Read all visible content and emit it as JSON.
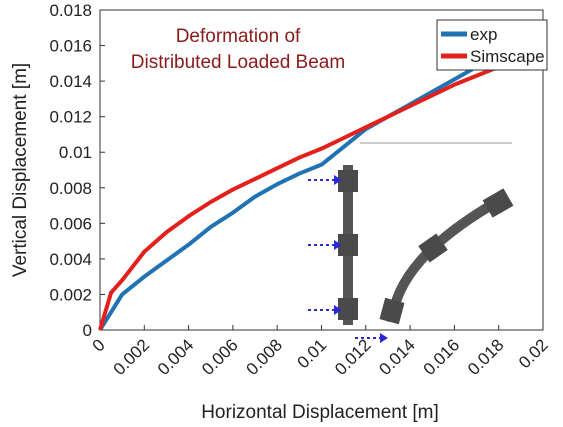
{
  "chart_data": {
    "type": "line",
    "annotations": [
      "Deformation of",
      "Distributed Loaded Beam"
    ],
    "annotation_color": "#8b1a1a",
    "x_label": "Horizontal Displacement [m]",
    "y_label": "Vertical Displacement [m]",
    "x": [
      0,
      0.0005,
      0.001,
      0.002,
      0.003,
      0.004,
      0.005,
      0.006,
      0.007,
      0.008,
      0.009,
      0.01,
      0.011,
      0.012,
      0.013,
      0.014,
      0.015,
      0.016,
      0.017,
      0.018,
      0.019,
      0.0198
    ],
    "series": [
      {
        "name": "exp",
        "color": "#1f72b4",
        "values": [
          0,
          0.001,
          0.002,
          0.003,
          0.0039,
          0.0048,
          0.0058,
          0.0066,
          0.0075,
          0.0082,
          0.0088,
          0.0093,
          0.0103,
          0.0113,
          0.012,
          0.0127,
          0.0134,
          0.0141,
          0.0148,
          0.0154,
          0.0159,
          0.0161
        ]
      },
      {
        "name": "Simscape",
        "color": "#e3201b",
        "values": [
          0,
          0.0021,
          0.0028,
          0.0044,
          0.0055,
          0.0064,
          0.0072,
          0.0079,
          0.0085,
          0.0091,
          0.0097,
          0.0102,
          0.0108,
          0.0114,
          0.012,
          0.0126,
          0.0132,
          0.0138,
          0.0143,
          0.0148,
          0.0152,
          0.0154
        ]
      }
    ],
    "xlim": [
      0,
      0.02
    ],
    "xticks": [
      0,
      0.002,
      0.004,
      0.006,
      0.008,
      0.01,
      0.012,
      0.014,
      0.016,
      0.018,
      0.02
    ],
    "ylim": [
      0,
      0.018
    ],
    "yticks": [
      0,
      0.002,
      0.004,
      0.006,
      0.008,
      0.01,
      0.012,
      0.014,
      0.016,
      0.018
    ],
    "grid": false,
    "legend": "top-right"
  }
}
